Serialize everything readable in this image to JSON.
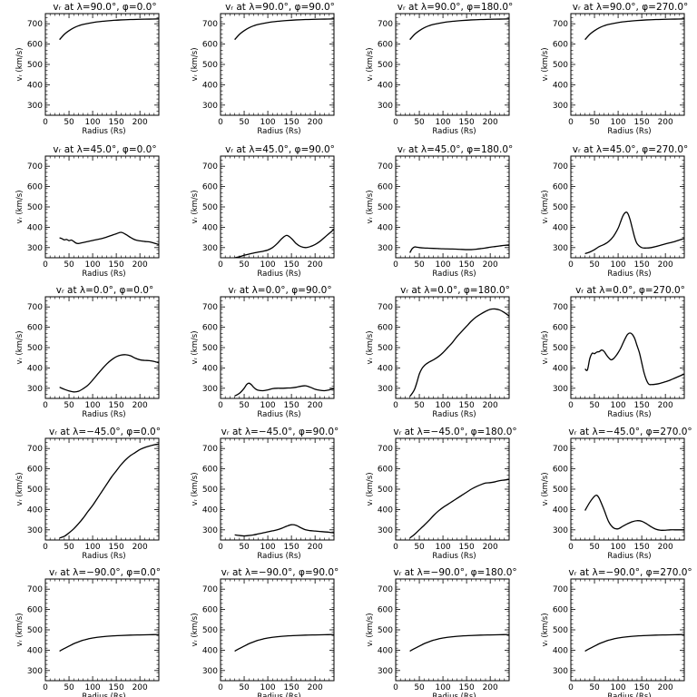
{
  "figure": {
    "xlabel": "Radius (Rs)",
    "ylabel": "vᵣ (km/s)",
    "xlim": [
      0,
      240
    ],
    "ylim": [
      250,
      750
    ],
    "xticks": [
      0,
      50,
      100,
      150,
      200
    ],
    "yticks": [
      300,
      400,
      500,
      600,
      700
    ]
  },
  "chart_data": [
    {
      "type": "line",
      "title": "vᵣ at λ=90.0°, φ=0.0°",
      "lambda": "90.0",
      "phi": "0.0",
      "xlabel": "Radius (Rs)",
      "ylabel": "vᵣ (km/s)",
      "xlim": [
        0,
        240
      ],
      "ylim": [
        250,
        750
      ],
      "x": [
        30,
        40,
        50,
        60,
        70,
        80,
        100,
        120,
        140,
        160,
        180,
        200,
        220,
        240
      ],
      "y": [
        622,
        648,
        666,
        680,
        690,
        697,
        706,
        712,
        716,
        719,
        721,
        722,
        723,
        724
      ]
    },
    {
      "type": "line",
      "title": "vᵣ at λ=90.0°, φ=90.0°",
      "lambda": "90.0",
      "phi": "90.0",
      "xlabel": "Radius (Rs)",
      "ylabel": "vᵣ (km/s)",
      "xlim": [
        0,
        240
      ],
      "ylim": [
        250,
        750
      ],
      "x": [
        30,
        40,
        50,
        60,
        70,
        80,
        100,
        120,
        140,
        160,
        180,
        200,
        220,
        240
      ],
      "y": [
        622,
        648,
        666,
        680,
        690,
        697,
        706,
        712,
        716,
        719,
        721,
        722,
        723,
        724
      ]
    },
    {
      "type": "line",
      "title": "vᵣ at λ=90.0°, φ=180.0°",
      "lambda": "90.0",
      "phi": "180.0",
      "xlabel": "Radius (Rs)",
      "ylabel": "vᵣ (km/s)",
      "xlim": [
        0,
        240
      ],
      "ylim": [
        250,
        750
      ],
      "x": [
        30,
        40,
        50,
        60,
        70,
        80,
        100,
        120,
        140,
        160,
        180,
        200,
        220,
        240
      ],
      "y": [
        622,
        648,
        666,
        680,
        690,
        697,
        706,
        712,
        716,
        719,
        721,
        722,
        723,
        724
      ]
    },
    {
      "type": "line",
      "title": "vᵣ at λ=90.0°, φ=270.0°",
      "lambda": "90.0",
      "phi": "270.0",
      "xlabel": "Radius (Rs)",
      "ylabel": "vᵣ (km/s)",
      "xlim": [
        0,
        240
      ],
      "ylim": [
        250,
        750
      ],
      "x": [
        30,
        40,
        50,
        60,
        70,
        80,
        100,
        120,
        140,
        160,
        180,
        200,
        220,
        240
      ],
      "y": [
        622,
        648,
        666,
        680,
        690,
        697,
        706,
        712,
        716,
        719,
        721,
        722,
        723,
        724
      ]
    },
    {
      "type": "line",
      "title": "vᵣ at λ=45.0°, φ=0.0°",
      "lambda": "45.0",
      "phi": "0.0",
      "xlabel": "Radius (Rs)",
      "ylabel": "vᵣ (km/s)",
      "xlim": [
        0,
        240
      ],
      "ylim": [
        250,
        750
      ],
      "x": [
        30,
        35,
        40,
        45,
        50,
        55,
        60,
        65,
        70,
        80,
        90,
        100,
        110,
        120,
        130,
        140,
        150,
        160,
        170,
        180,
        190,
        200,
        210,
        220,
        230,
        240
      ],
      "y": [
        348,
        344,
        338,
        340,
        334,
        337,
        330,
        322,
        320,
        325,
        330,
        335,
        340,
        345,
        352,
        360,
        368,
        375,
        365,
        350,
        338,
        333,
        330,
        328,
        322,
        315
      ]
    },
    {
      "type": "line",
      "title": "vᵣ at λ=45.0°, φ=90.0°",
      "lambda": "45.0",
      "phi": "90.0",
      "xlabel": "Radius (Rs)",
      "ylabel": "vᵣ (km/s)",
      "xlim": [
        0,
        240
      ],
      "ylim": [
        250,
        750
      ],
      "x": [
        30,
        40,
        50,
        60,
        70,
        80,
        90,
        100,
        110,
        120,
        130,
        140,
        150,
        160,
        170,
        180,
        190,
        200,
        210,
        220,
        230,
        240
      ],
      "y": [
        250,
        255,
        262,
        268,
        273,
        278,
        282,
        288,
        300,
        320,
        345,
        360,
        345,
        320,
        305,
        300,
        305,
        315,
        330,
        350,
        370,
        390
      ]
    },
    {
      "type": "line",
      "title": "vᵣ at λ=45.0°, φ=180.0°",
      "lambda": "45.0",
      "phi": "180.0",
      "xlabel": "Radius (Rs)",
      "ylabel": "vᵣ (km/s)",
      "xlim": [
        0,
        240
      ],
      "ylim": [
        250,
        750
      ],
      "x": [
        30,
        35,
        40,
        45,
        50,
        60,
        70,
        80,
        90,
        100,
        120,
        140,
        150,
        160,
        170,
        180,
        190,
        200,
        210,
        220,
        230,
        240
      ],
      "y": [
        275,
        295,
        303,
        302,
        300,
        298,
        297,
        296,
        295,
        294,
        293,
        291,
        290,
        290,
        292,
        295,
        298,
        302,
        305,
        308,
        311,
        313
      ]
    },
    {
      "type": "line",
      "title": "vᵣ at λ=45.0°, φ=270.0°",
      "lambda": "45.0",
      "phi": "270.0",
      "xlabel": "Radius (Rs)",
      "ylabel": "vᵣ (km/s)",
      "xlim": [
        0,
        240
      ],
      "ylim": [
        250,
        750
      ],
      "x": [
        30,
        40,
        50,
        60,
        70,
        80,
        90,
        100,
        105,
        110,
        115,
        120,
        125,
        130,
        135,
        140,
        150,
        160,
        170,
        180,
        200,
        220,
        240
      ],
      "y": [
        270,
        278,
        290,
        305,
        315,
        330,
        355,
        395,
        425,
        455,
        472,
        470,
        440,
        395,
        350,
        320,
        300,
        298,
        300,
        305,
        318,
        330,
        345
      ]
    },
    {
      "type": "line",
      "title": "vᵣ at λ=0.0°, φ=0.0°",
      "lambda": "0.0",
      "phi": "0.0",
      "xlabel": "Radius (Rs)",
      "ylabel": "vᵣ (km/s)",
      "xlim": [
        0,
        240
      ],
      "ylim": [
        250,
        750
      ],
      "x": [
        30,
        40,
        50,
        60,
        70,
        80,
        90,
        100,
        110,
        120,
        130,
        140,
        150,
        160,
        170,
        180,
        190,
        200,
        210,
        220,
        230,
        240
      ],
      "y": [
        305,
        295,
        287,
        282,
        285,
        298,
        315,
        340,
        368,
        395,
        420,
        440,
        455,
        463,
        465,
        460,
        448,
        440,
        437,
        436,
        432,
        425
      ]
    },
    {
      "type": "line",
      "title": "vᵣ at λ=0.0°, φ=90.0°",
      "lambda": "0.0",
      "phi": "90.0",
      "xlabel": "Radius (Rs)",
      "ylabel": "vᵣ (km/s)",
      "xlim": [
        0,
        240
      ],
      "ylim": [
        250,
        750
      ],
      "x": [
        30,
        40,
        50,
        55,
        60,
        65,
        70,
        75,
        80,
        90,
        100,
        110,
        120,
        130,
        140,
        150,
        160,
        170,
        180,
        190,
        200,
        210,
        220,
        230,
        240
      ],
      "y": [
        262,
        275,
        300,
        318,
        325,
        318,
        305,
        295,
        290,
        288,
        292,
        298,
        300,
        300,
        301,
        302,
        305,
        310,
        312,
        305,
        295,
        290,
        288,
        292,
        298
      ]
    },
    {
      "type": "line",
      "title": "vᵣ at λ=0.0°, φ=180.0°",
      "lambda": "0.0",
      "phi": "180.0",
      "xlabel": "Radius (Rs)",
      "ylabel": "vᵣ (km/s)",
      "xlim": [
        0,
        240
      ],
      "ylim": [
        250,
        750
      ],
      "x": [
        30,
        35,
        40,
        45,
        50,
        55,
        60,
        65,
        70,
        80,
        90,
        100,
        110,
        120,
        130,
        140,
        150,
        160,
        170,
        180,
        190,
        200,
        210,
        220,
        230,
        240
      ],
      "y": [
        260,
        275,
        295,
        330,
        370,
        395,
        410,
        420,
        428,
        440,
        455,
        475,
        500,
        525,
        555,
        580,
        605,
        630,
        650,
        665,
        678,
        688,
        690,
        685,
        672,
        655
      ]
    },
    {
      "type": "line",
      "title": "vᵣ at λ=0.0°, φ=270.0°",
      "lambda": "0.0",
      "phi": "270.0",
      "xlabel": "Radius (Rs)",
      "ylabel": "vᵣ (km/s)",
      "xlim": [
        0,
        240
      ],
      "ylim": [
        250,
        750
      ],
      "x": [
        30,
        35,
        40,
        45,
        50,
        55,
        60,
        65,
        70,
        75,
        80,
        85,
        90,
        95,
        100,
        105,
        110,
        115,
        120,
        125,
        130,
        135,
        140,
        145,
        150,
        155,
        160,
        165,
        170,
        180,
        190,
        200,
        210,
        220,
        230,
        240
      ],
      "y": [
        395,
        390,
        445,
        472,
        470,
        478,
        480,
        488,
        482,
        465,
        450,
        440,
        445,
        458,
        475,
        495,
        520,
        545,
        565,
        572,
        565,
        545,
        510,
        475,
        425,
        375,
        340,
        320,
        318,
        320,
        325,
        332,
        340,
        350,
        360,
        370
      ]
    },
    {
      "type": "line",
      "title": "vᵣ at λ=−45.0°, φ=0.0°",
      "lambda": "−45.0",
      "phi": "0.0",
      "xlabel": "Radius (Rs)",
      "ylabel": "vᵣ (km/s)",
      "xlim": [
        0,
        240
      ],
      "ylim": [
        250,
        750
      ],
      "x": [
        30,
        40,
        50,
        60,
        70,
        80,
        90,
        100,
        110,
        120,
        130,
        140,
        150,
        160,
        170,
        180,
        190,
        200,
        210,
        220,
        230,
        240
      ],
      "y": [
        260,
        268,
        285,
        305,
        330,
        358,
        390,
        420,
        455,
        490,
        525,
        560,
        590,
        620,
        645,
        665,
        680,
        695,
        705,
        712,
        718,
        722
      ]
    },
    {
      "type": "line",
      "title": "vᵣ at λ=−45.0°, φ=90.0°",
      "lambda": "−45.0",
      "phi": "90.0",
      "xlabel": "Radius (Rs)",
      "ylabel": "vᵣ (km/s)",
      "xlim": [
        0,
        240
      ],
      "ylim": [
        250,
        750
      ],
      "x": [
        30,
        40,
        50,
        60,
        70,
        80,
        90,
        100,
        110,
        120,
        130,
        140,
        150,
        160,
        170,
        180,
        190,
        200,
        210,
        220,
        230,
        240
      ],
      "y": [
        275,
        272,
        270,
        272,
        275,
        280,
        285,
        290,
        295,
        300,
        308,
        318,
        325,
        322,
        310,
        300,
        296,
        294,
        292,
        290,
        288,
        285
      ]
    },
    {
      "type": "line",
      "title": "vᵣ at λ=−45.0°, φ=180.0°",
      "lambda": "−45.0",
      "phi": "180.0",
      "xlabel": "Radius (Rs)",
      "ylabel": "vᵣ (km/s)",
      "xlim": [
        0,
        240
      ],
      "ylim": [
        250,
        750
      ],
      "x": [
        30,
        40,
        50,
        60,
        70,
        80,
        90,
        100,
        110,
        120,
        130,
        140,
        150,
        160,
        170,
        180,
        190,
        200,
        210,
        220,
        230,
        240
      ],
      "y": [
        260,
        278,
        300,
        322,
        345,
        370,
        392,
        410,
        425,
        440,
        455,
        470,
        485,
        500,
        512,
        522,
        530,
        532,
        536,
        542,
        545,
        548
      ]
    },
    {
      "type": "line",
      "title": "vᵣ at λ=−45.0°, φ=270.0°",
      "lambda": "−45.0",
      "phi": "270.0",
      "xlabel": "Radius (Rs)",
      "ylabel": "vᵣ (km/s)",
      "xlim": [
        0,
        240
      ],
      "ylim": [
        250,
        750
      ],
      "x": [
        30,
        40,
        50,
        55,
        60,
        70,
        80,
        90,
        100,
        110,
        120,
        130,
        140,
        150,
        160,
        170,
        180,
        190,
        200,
        210,
        220,
        230,
        240
      ],
      "y": [
        395,
        435,
        465,
        470,
        455,
        400,
        340,
        310,
        305,
        318,
        330,
        340,
        345,
        342,
        330,
        315,
        303,
        298,
        298,
        300,
        300,
        300,
        300
      ]
    },
    {
      "type": "line",
      "title": "vᵣ at λ=−90.0°, φ=0.0°",
      "lambda": "−90.0",
      "phi": "0.0",
      "xlabel": "Radius (Rs)",
      "ylabel": "vᵣ (km/s)",
      "xlim": [
        0,
        240
      ],
      "ylim": [
        250,
        750
      ],
      "x": [
        30,
        40,
        50,
        60,
        70,
        80,
        90,
        100,
        120,
        140,
        160,
        180,
        200,
        220,
        240
      ],
      "y": [
        395,
        408,
        420,
        432,
        441,
        449,
        455,
        460,
        466,
        470,
        472,
        474,
        475,
        476,
        477
      ]
    },
    {
      "type": "line",
      "title": "vᵣ at λ=−90.0°, φ=90.0°",
      "lambda": "−90.0",
      "phi": "90.0",
      "xlabel": "Radius (Rs)",
      "ylabel": "vᵣ (km/s)",
      "xlim": [
        0,
        240
      ],
      "ylim": [
        250,
        750
      ],
      "x": [
        30,
        40,
        50,
        60,
        70,
        80,
        90,
        100,
        120,
        140,
        160,
        180,
        200,
        220,
        240
      ],
      "y": [
        395,
        408,
        420,
        432,
        441,
        449,
        455,
        460,
        466,
        470,
        472,
        474,
        475,
        476,
        477
      ]
    },
    {
      "type": "line",
      "title": "vᵣ at λ=−90.0°, φ=180.0°",
      "lambda": "−90.0",
      "phi": "180.0",
      "xlabel": "Radius (Rs)",
      "ylabel": "vᵣ (km/s)",
      "xlim": [
        0,
        240
      ],
      "ylim": [
        250,
        750
      ],
      "x": [
        30,
        40,
        50,
        60,
        70,
        80,
        90,
        100,
        120,
        140,
        160,
        180,
        200,
        220,
        240
      ],
      "y": [
        395,
        408,
        420,
        432,
        441,
        449,
        455,
        460,
        466,
        470,
        472,
        474,
        475,
        476,
        477
      ]
    },
    {
      "type": "line",
      "title": "vᵣ at λ=−90.0°, φ=270.0°",
      "lambda": "−90.0",
      "phi": "270.0",
      "xlabel": "Radius (Rs)",
      "ylabel": "vᵣ (km/s)",
      "xlim": [
        0,
        240
      ],
      "ylim": [
        250,
        750
      ],
      "x": [
        30,
        40,
        50,
        60,
        70,
        80,
        90,
        100,
        120,
        140,
        160,
        180,
        200,
        220,
        240
      ],
      "y": [
        395,
        408,
        420,
        432,
        441,
        449,
        455,
        460,
        466,
        470,
        472,
        474,
        475,
        476,
        477
      ]
    }
  ]
}
